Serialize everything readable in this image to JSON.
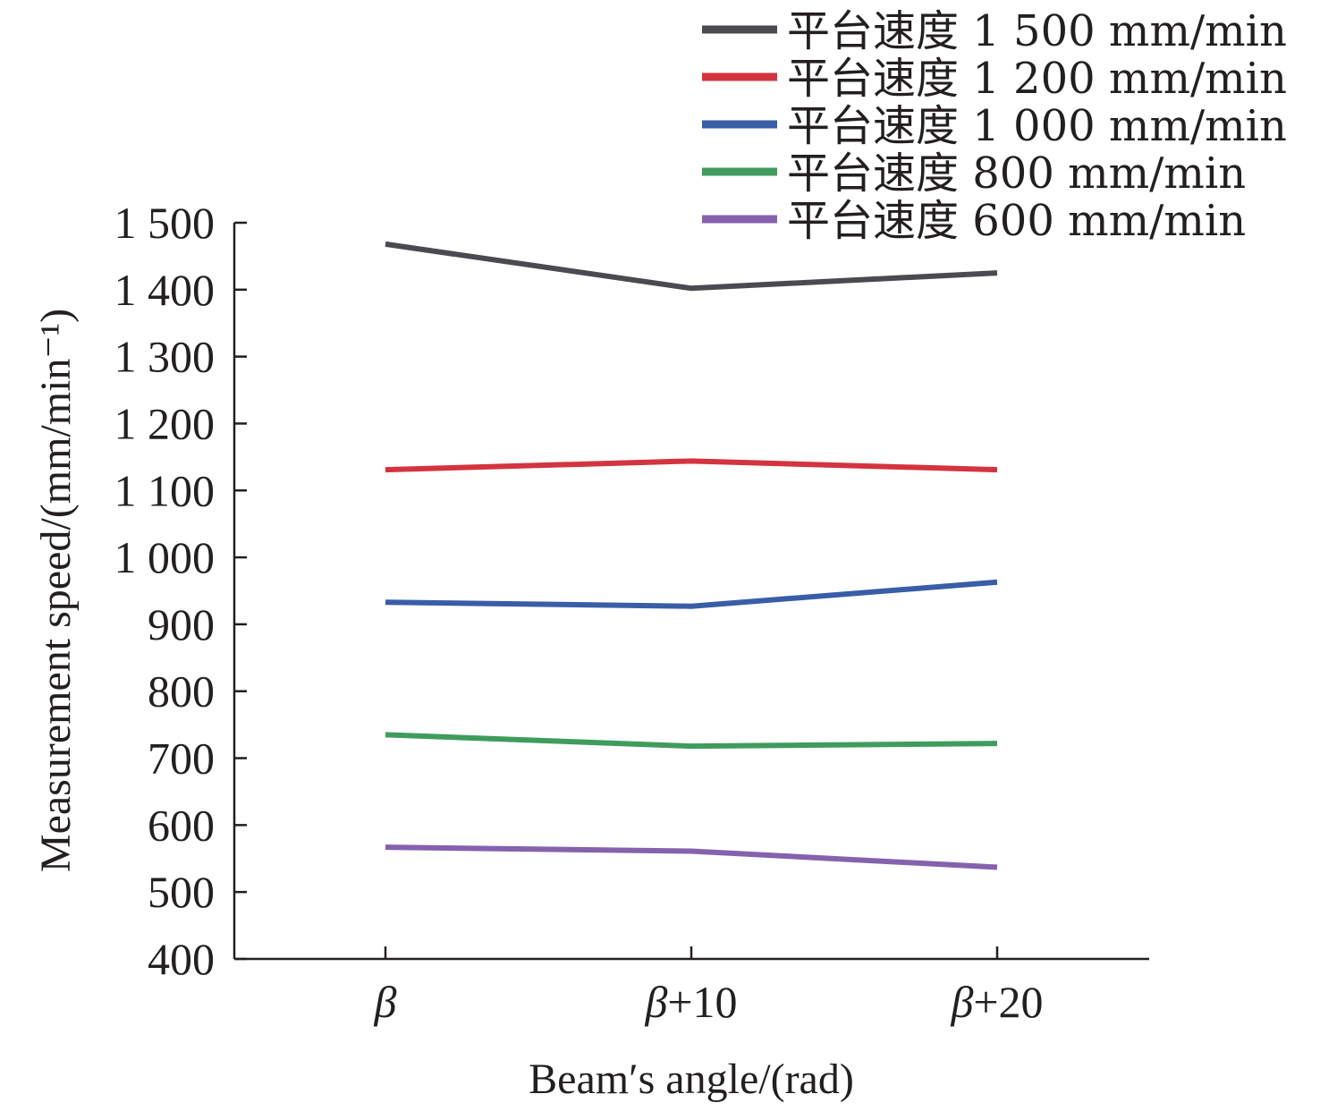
{
  "chart_data": {
    "type": "line",
    "title": "",
    "xlabel": "Beam′s angle/(rad)",
    "ylabel": "Measurement speed/(mm/min⁻¹)",
    "categories": [
      {
        "symbol": "β",
        "suffix": ""
      },
      {
        "symbol": "β",
        "suffix": "+10"
      },
      {
        "symbol": "β",
        "suffix": "+20"
      }
    ],
    "ylim": [
      400,
      1500
    ],
    "yticks": [
      400,
      500,
      600,
      700,
      800,
      900,
      1000,
      1100,
      1200,
      1300,
      1400,
      1500
    ],
    "ytick_labels": [
      "400",
      "500",
      "600",
      "700",
      "800",
      "900",
      "1 000",
      "1 100",
      "1 200",
      "1 300",
      "1 400",
      "1 500"
    ],
    "legend_position": "top-right",
    "grid": false,
    "series": [
      {
        "name": "平台速度 1 500 mm/min",
        "color": "#4a4a4f",
        "values": [
          1468,
          1402,
          1425
        ]
      },
      {
        "name": "平台速度 1 200 mm/min",
        "color": "#d3343f",
        "values": [
          1131,
          1144,
          1131
        ]
      },
      {
        "name": "平台速度 1 000 mm/min",
        "color": "#3a5da8",
        "values": [
          933,
          927,
          963
        ]
      },
      {
        "name": "平台速度 800 mm/min",
        "color": "#3f9c5d",
        "values": [
          735,
          718,
          722
        ]
      },
      {
        "name": "平台速度 600 mm/min",
        "color": "#8462ad",
        "values": [
          567,
          561,
          537
        ]
      }
    ]
  }
}
